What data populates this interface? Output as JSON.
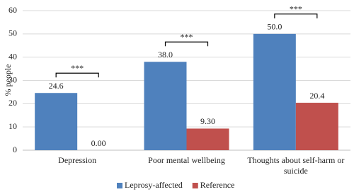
{
  "chart_data": {
    "type": "bar",
    "y_label": "% people",
    "categories": [
      "Depression",
      "Poor mental wellbeing",
      "Thoughts about self-harm or suicide"
    ],
    "series": [
      {
        "name": "Leprosy-affected",
        "color": "#4f81bd",
        "values": [
          24.6,
          38.0,
          50.0
        ],
        "value_labels": [
          "24.6",
          "38.0",
          "50.0"
        ]
      },
      {
        "name": "Reference",
        "color": "#c0504d",
        "values": [
          0,
          9.3,
          20.4
        ],
        "value_labels": [
          "0.00",
          "9.30",
          "20.4"
        ]
      }
    ],
    "annotations": [
      "***",
      "***",
      "***"
    ],
    "ylim": [
      0,
      60
    ],
    "yticks": [
      0,
      10,
      20,
      30,
      40,
      50,
      60
    ],
    "grid": true,
    "legend": "bottom"
  }
}
